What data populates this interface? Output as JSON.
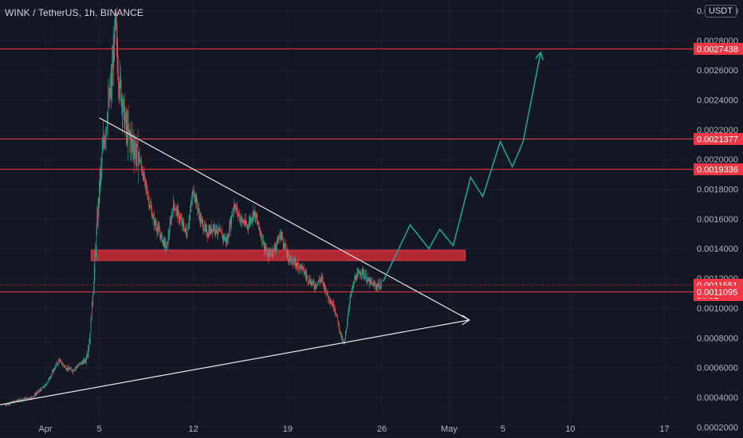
{
  "header": {
    "symbol_title": "WINK / TetherUS, 1h, BINANCE",
    "currency_badge": "USDT"
  },
  "colors": {
    "background": "#131722",
    "grid": "#1f2330",
    "axis_text": "#b2b5be",
    "candle_up": "#26a69a",
    "candle_down": "#ef5350",
    "level_line": "#f23645",
    "zone_fill": "#b22833",
    "trendline": "#e8e8e8",
    "projection": "#26a69a"
  },
  "chart_data": {
    "type": "candlestick",
    "title": "WINK / TetherUS, 1h, BINANCE",
    "y_axis": {
      "unit": "USDT",
      "range": [
        0.0001,
        0.0032
      ],
      "ticks": [
        "0.0002000",
        "0.0004000",
        "0.0006000",
        "0.0008000",
        "0.0010000",
        "0.0012000",
        "0.0014000",
        "0.0016000",
        "0.0018000",
        "0.0020000",
        "0.0022000",
        "0.0024000",
        "0.0026000",
        "0.0028000",
        "0.0030000"
      ]
    },
    "x_axis": {
      "ticks": [
        {
          "label": "Apr",
          "day": 1
        },
        {
          "label": "5",
          "day": 5
        },
        {
          "label": "12",
          "day": 12
        },
        {
          "label": "19",
          "day": 19
        },
        {
          "label": "26",
          "day": 26
        },
        {
          "label": "May",
          "day": 31
        },
        {
          "label": "5",
          "day": 35
        },
        {
          "label": "10",
          "day": 40
        },
        {
          "label": "17",
          "day": 47
        }
      ]
    },
    "price_path_days": [
      -2,
      -1,
      0,
      1,
      2,
      2.5,
      3,
      3.5,
      4,
      4.3,
      4.6,
      5,
      5.3,
      5.6,
      5.9,
      6.2,
      6.4,
      6.7,
      7,
      7.5,
      8,
      8.5,
      9,
      9.5,
      10,
      10.5,
      11,
      11.5,
      12,
      12.5,
      13,
      13.5,
      14,
      14.5,
      15,
      15.5,
      16,
      16.5,
      17,
      17.5,
      18,
      18.5,
      19,
      19.5,
      20,
      20.5,
      21,
      21.5,
      22,
      22.5,
      23,
      23.2,
      23.4,
      23.6,
      24,
      24.5,
      25,
      25.5,
      26
    ],
    "price_path_values": [
      0.00035,
      0.00038,
      0.0004,
      0.00048,
      0.00065,
      0.0006,
      0.00058,
      0.00062,
      0.00065,
      0.0008,
      0.0012,
      0.0018,
      0.0021,
      0.0023,
      0.0025,
      0.0029,
      0.0026,
      0.0024,
      0.0022,
      0.0021,
      0.002,
      0.0018,
      0.0016,
      0.0015,
      0.0014,
      0.0017,
      0.0016,
      0.0015,
      0.0018,
      0.0016,
      0.0015,
      0.00155,
      0.0015,
      0.00145,
      0.0017,
      0.0016,
      0.00155,
      0.00165,
      0.0015,
      0.00135,
      0.0014,
      0.0015,
      0.00135,
      0.0013,
      0.00128,
      0.0012,
      0.00115,
      0.0012,
      0.00108,
      0.001,
      0.0008,
      0.00075,
      0.0009,
      0.00105,
      0.0012,
      0.00125,
      0.00118,
      0.00115,
      0.0011551
    ],
    "levels": [
      {
        "price": 0.0027438,
        "label": "0.0027438"
      },
      {
        "price": 0.0021377,
        "label": "0.0021377"
      },
      {
        "price": 0.0019336,
        "label": "0.0019336"
      },
      {
        "price": 0.0011095,
        "label": "0.0011095"
      }
    ],
    "current_price": {
      "price": 0.0011551,
      "label": "0.0011551",
      "countdown": "36:01"
    },
    "resistance_zone": {
      "day_start": 4.4,
      "day_end": 32.2,
      "price_low": 0.00132,
      "price_high": 0.00139
    },
    "trendline_upper": {
      "from_day": 5.0,
      "from_price": 0.00228,
      "to_day": 32.5,
      "to_price": 0.00092
    },
    "trendline_lower": {
      "from_day": -3,
      "from_price": 0.00034,
      "to_day": 32.5,
      "to_price": 0.00092
    },
    "projection_days": [
      26.1,
      28.1,
      29.5,
      30.3,
      31.3,
      32.6,
      33.5,
      34.8,
      35.7,
      36.5,
      37.8
    ],
    "projection_values": [
      0.00118,
      0.00156,
      0.0014,
      0.00153,
      0.00142,
      0.00188,
      0.00175,
      0.00212,
      0.00195,
      0.00212,
      0.00272
    ],
    "grid": "on",
    "legend": "none"
  }
}
